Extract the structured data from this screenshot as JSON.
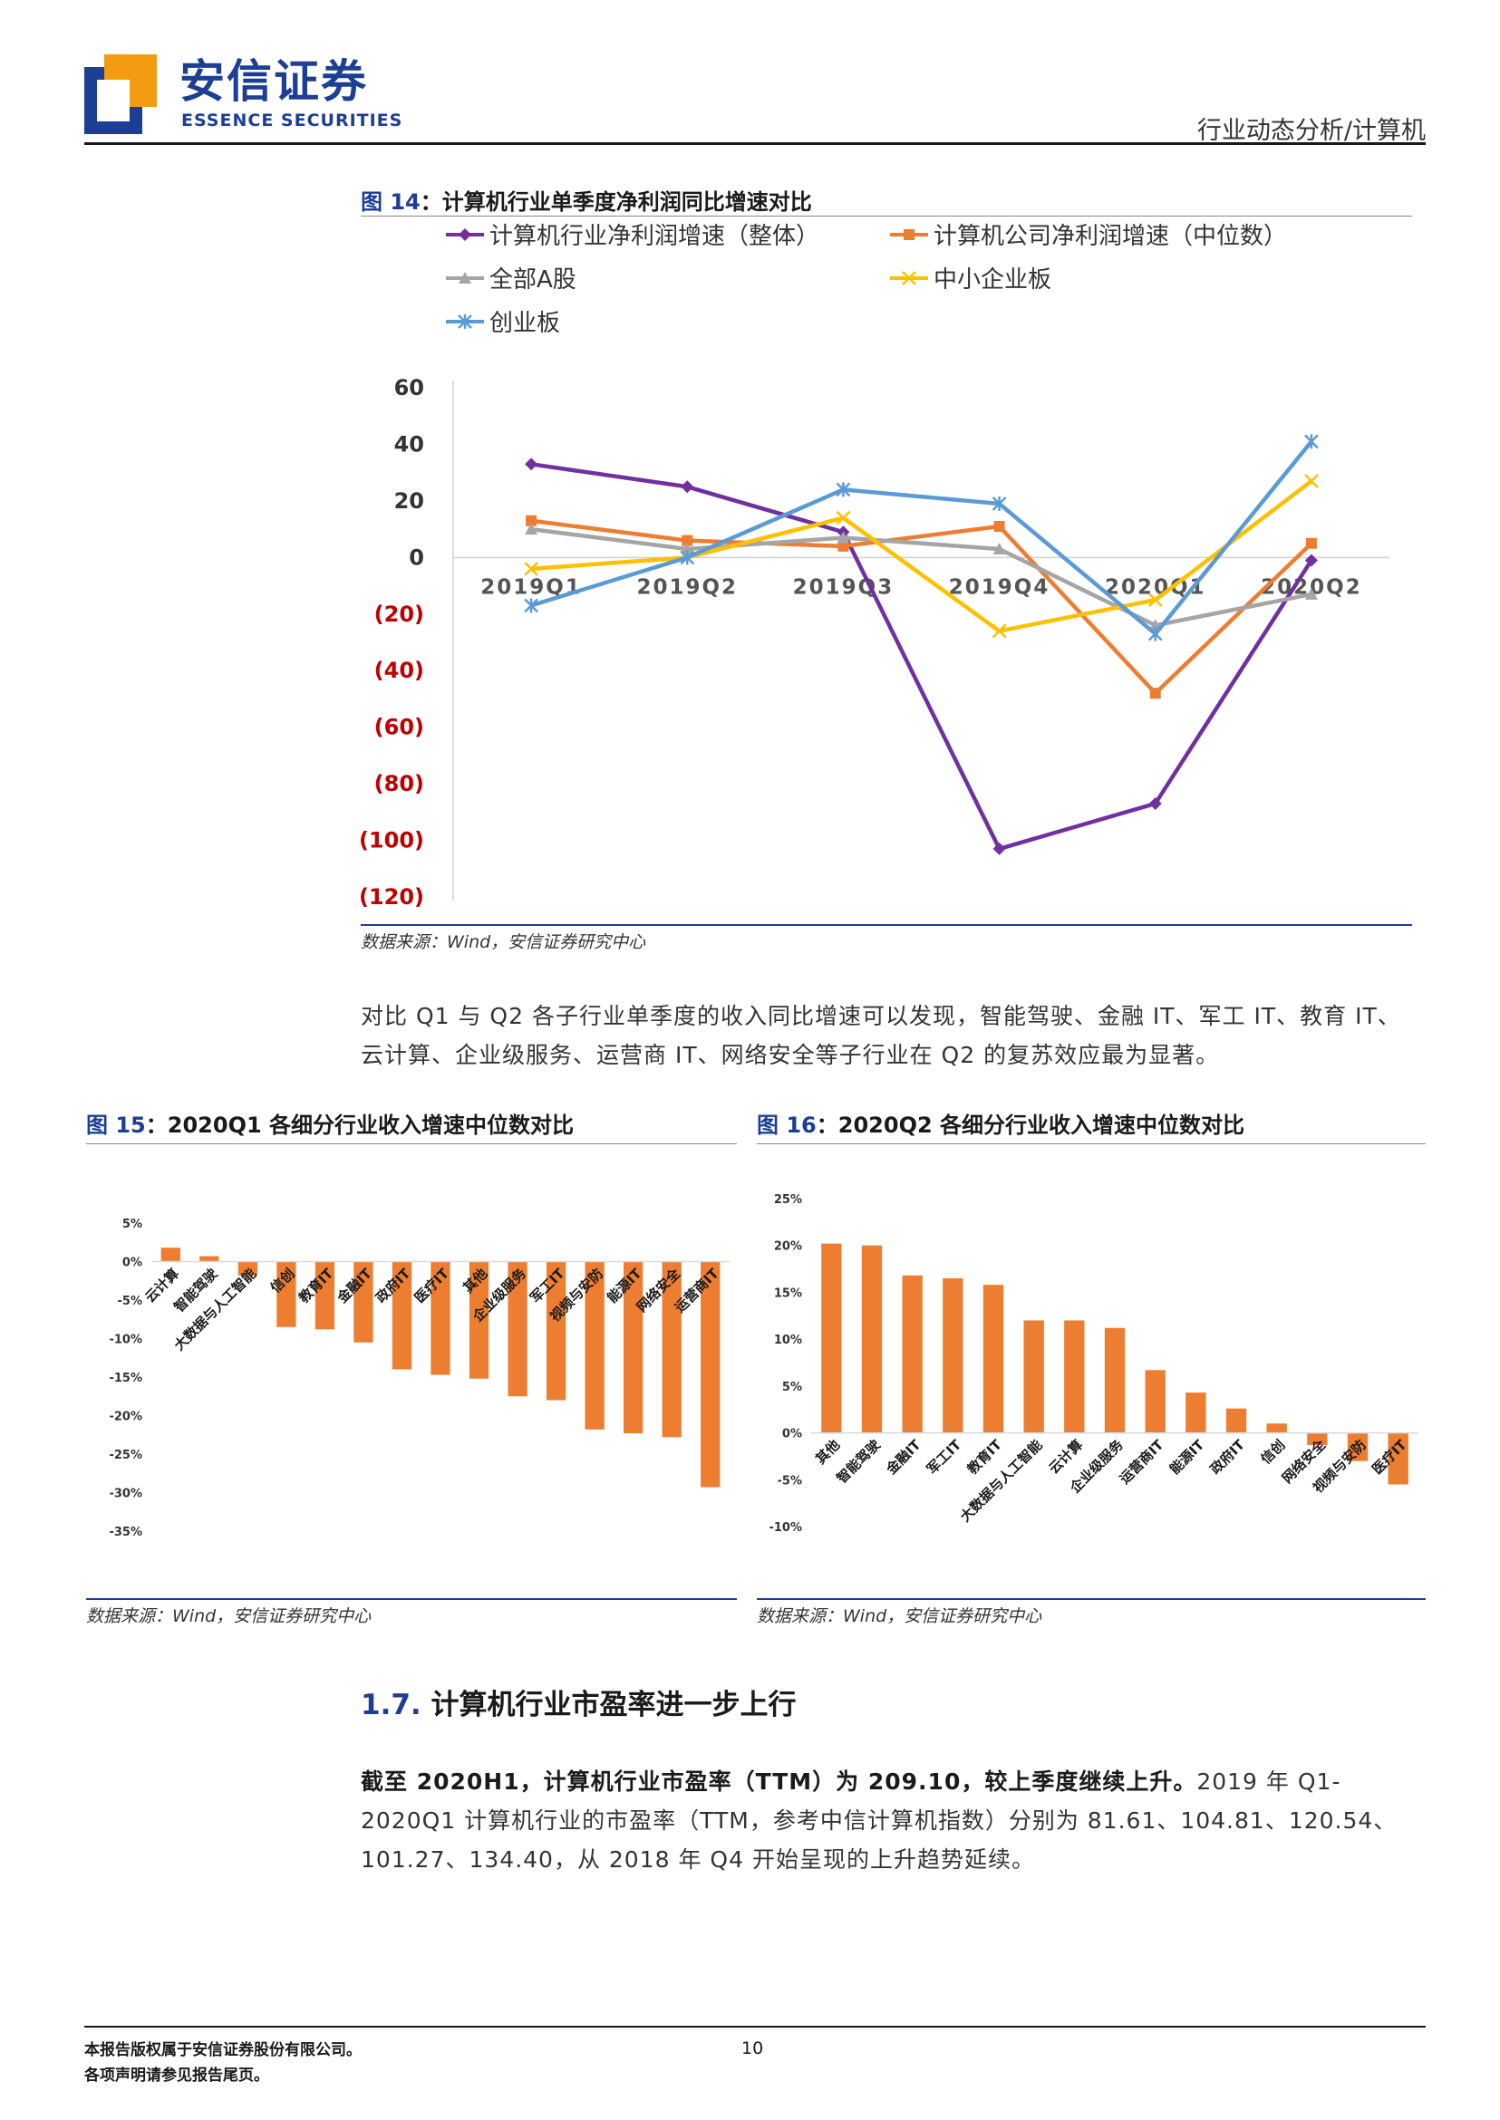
{
  "header": {
    "logo_cn": "安信证券",
    "logo_en": "ESSENCE SECURITIES",
    "section": "行业动态分析/计算机"
  },
  "fig14": {
    "label": "图 14",
    "title": "计算机行业单季度净利润同比增速对比",
    "source": "数据来源：Wind，安信证券研究中心"
  },
  "paragraph1": "对比 Q1 与 Q2 各子行业单季度的收入同比增速可以发现，智能驾驶、金融 IT、军工 IT、教育 IT、云计算、企业级服务、运营商 IT、网络安全等子行业在 Q2 的复苏效应最为显著。",
  "fig15": {
    "label": "图 15",
    "title": "2020Q1 各细分行业收入增速中位数对比",
    "source": "数据来源：Wind，安信证券研究中心"
  },
  "fig16": {
    "label": "图 16",
    "title": "2020Q2 各细分行业收入增速中位数对比",
    "source": "数据来源：Wind，安信证券研究中心"
  },
  "section17": {
    "num": "1.7.",
    "title": "计算机行业市盈率进一步上行"
  },
  "paragraph2": {
    "bold": "截至 2020H1，计算机行业市盈率（TTM）为 209.10，较上季度继续上升。",
    "rest": "2019 年 Q1-2020Q1 计算机行业的市盈率（TTM，参考中信计算机指数）分别为 81.61、104.81、120.54、101.27、134.40，从 2018 年 Q4 开始呈现的上升趋势延续。"
  },
  "footer": {
    "line1": "本报告版权属于安信证券股份有限公司。",
    "line2": "各项声明请参见报告尾页。",
    "page": "10"
  },
  "colors": {
    "brand_blue": "#1c3f94",
    "logo_orange": "#f39c12",
    "bar_orange": "#ed7d31",
    "negative_red": "#c00000"
  },
  "chart_data": [
    {
      "type": "line",
      "categories": [
        "2019Q1",
        "2019Q2",
        "2019Q3",
        "2019Q4",
        "2020Q1",
        "2020Q2"
      ],
      "ylim": [
        -120,
        60
      ],
      "yticks": [
        "60",
        "40",
        "20",
        "0",
        "(20)",
        "(40)",
        "(60)",
        "(80)",
        "(100)",
        "(120)"
      ],
      "legend_position": "top",
      "series": [
        {
          "name": "计算机行业净利润增速（整体）",
          "color": "#7030a0",
          "marker": "diamond",
          "values": [
            33,
            25,
            9,
            -103,
            -87,
            -1
          ]
        },
        {
          "name": "计算机公司净利润增速（中位数）",
          "color": "#ed7d31",
          "marker": "square",
          "values": [
            13,
            6,
            4,
            11,
            -48,
            5
          ]
        },
        {
          "name": "全部A股",
          "color": "#a5a5a5",
          "marker": "triangle",
          "values": [
            10,
            3,
            7,
            3,
            -24,
            -13
          ]
        },
        {
          "name": "中小企业板",
          "color": "#ffc000",
          "marker": "x",
          "values": [
            -4,
            0,
            14,
            -26,
            -15,
            27
          ]
        },
        {
          "name": "创业板",
          "color": "#5b9bd5",
          "marker": "star",
          "values": [
            -17,
            0,
            24,
            19,
            -27,
            41
          ]
        }
      ]
    },
    {
      "type": "bar",
      "categories": [
        "云计算",
        "智能驾驶",
        "大数据与人工智能",
        "信创",
        "教育IT",
        "金融IT",
        "政府IT",
        "医疗IT",
        "其他",
        "企业级服务",
        "军工IT",
        "视频与安防",
        "能源IT",
        "网络安全",
        "运营商IT"
      ],
      "values": [
        1.8,
        0.7,
        -1.8,
        -8.5,
        -8.8,
        -10.5,
        -14.0,
        -14.7,
        -15.2,
        -17.5,
        -18.0,
        -21.8,
        -22.3,
        -22.8,
        -29.3
      ],
      "ylim": [
        -35,
        5
      ],
      "yticks": [
        "5%",
        "0%",
        "-5%",
        "-10%",
        "-15%",
        "-20%",
        "-25%",
        "-30%",
        "-35%"
      ],
      "color": "#ed7d31"
    },
    {
      "type": "bar",
      "categories": [
        "其他",
        "智能驾驶",
        "金融IT",
        "军工IT",
        "教育IT",
        "大数据与人工智能",
        "云计算",
        "企业级服务",
        "运营商IT",
        "能源IT",
        "政府IT",
        "信创",
        "网络安全",
        "视频与安防",
        "医疗IT"
      ],
      "values": [
        20.2,
        20.0,
        16.8,
        16.5,
        15.8,
        12.0,
        12.0,
        11.2,
        6.7,
        4.3,
        2.6,
        1.0,
        -1.3,
        -3.0,
        -5.5
      ],
      "ylim": [
        -10,
        25
      ],
      "yticks": [
        "25%",
        "20%",
        "15%",
        "10%",
        "5%",
        "0%",
        "-5%",
        "-10%"
      ],
      "color": "#ed7d31"
    }
  ]
}
